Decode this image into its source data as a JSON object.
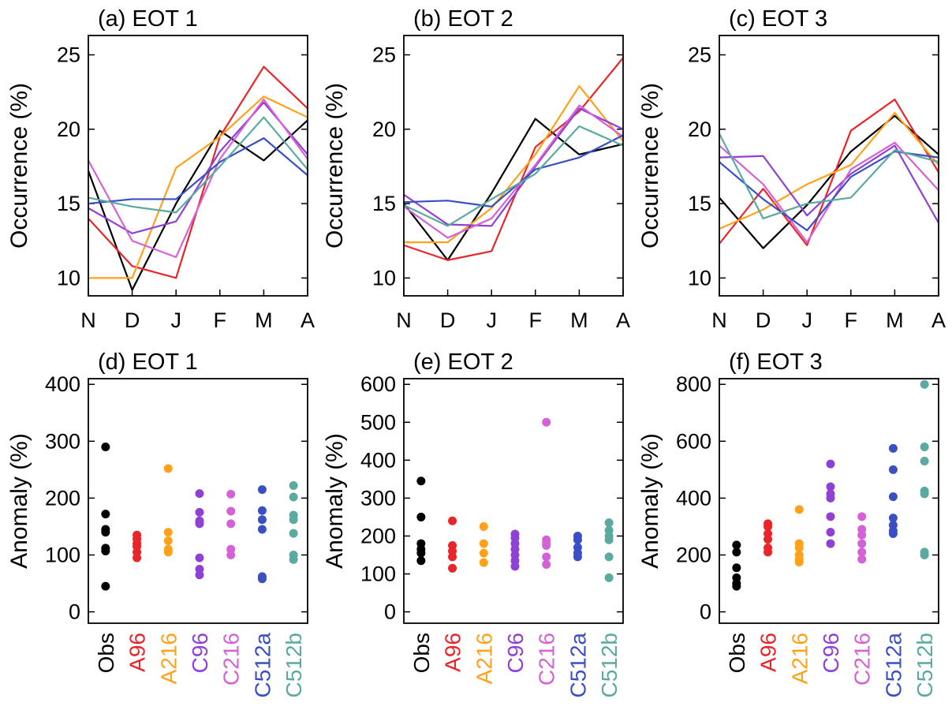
{
  "chart_data": [
    {
      "type": "line",
      "title": "(a) EOT 1",
      "y_label": "Occurrence (%)",
      "categories": [
        "N",
        "D",
        "J",
        "F",
        "M",
        "A"
      ],
      "ylim": [
        8.8,
        26.3
      ],
      "yticks": [
        10,
        15,
        20,
        25
      ],
      "series": [
        {
          "name": "Obs",
          "color": "#000000",
          "values": [
            17.2,
            9.2,
            15.0,
            19.9,
            17.9,
            20.6
          ]
        },
        {
          "name": "A96",
          "color": "#e8262a",
          "values": [
            14.0,
            10.8,
            10.0,
            19.5,
            24.2,
            21.4
          ]
        },
        {
          "name": "A216",
          "color": "#ffa21a",
          "values": [
            10.0,
            10.0,
            17.4,
            19.5,
            22.2,
            20.8
          ]
        },
        {
          "name": "C96",
          "color": "#9140d4",
          "values": [
            14.7,
            13.0,
            13.8,
            18.5,
            21.8,
            18.3
          ]
        },
        {
          "name": "C216",
          "color": "#d462d6",
          "values": [
            17.9,
            12.5,
            11.4,
            18.0,
            22.0,
            18.0
          ]
        },
        {
          "name": "C512a",
          "color": "#3a4fc4",
          "values": [
            15.0,
            15.3,
            15.3,
            17.8,
            19.4,
            16.9
          ]
        },
        {
          "name": "C512b",
          "color": "#5aaaa2",
          "values": [
            15.4,
            14.8,
            14.4,
            17.5,
            20.8,
            17.3
          ]
        }
      ]
    },
    {
      "type": "line",
      "title": "(b) EOT 2",
      "y_label": "Occurrence (%)",
      "categories": [
        "N",
        "D",
        "J",
        "F",
        "M",
        "A"
      ],
      "ylim": [
        8.8,
        26.3
      ],
      "yticks": [
        10,
        15,
        20,
        25
      ],
      "series": [
        {
          "name": "Obs",
          "color": "#000000",
          "values": [
            15.0,
            11.2,
            15.7,
            20.7,
            18.3,
            19.0
          ]
        },
        {
          "name": "A96",
          "color": "#e8262a",
          "values": [
            12.2,
            11.2,
            11.8,
            18.8,
            21.2,
            24.8
          ]
        },
        {
          "name": "A216",
          "color": "#ffa21a",
          "values": [
            12.4,
            12.4,
            14.7,
            18.3,
            22.9,
            19.2
          ]
        },
        {
          "name": "C96",
          "color": "#9140d4",
          "values": [
            15.6,
            13.6,
            13.5,
            17.5,
            21.4,
            20.0
          ]
        },
        {
          "name": "C216",
          "color": "#d462d6",
          "values": [
            14.8,
            12.7,
            14.0,
            17.6,
            21.6,
            19.5
          ]
        },
        {
          "name": "C512a",
          "color": "#3a4fc4",
          "values": [
            15.1,
            15.2,
            14.8,
            17.3,
            18.1,
            19.6
          ]
        },
        {
          "name": "C512b",
          "color": "#5aaaa2",
          "values": [
            14.9,
            13.5,
            15.3,
            17.0,
            20.2,
            18.9
          ]
        }
      ]
    },
    {
      "type": "line",
      "title": "(c) EOT 3",
      "y_label": "Occurrence (%)",
      "categories": [
        "N",
        "D",
        "J",
        "F",
        "M",
        "A"
      ],
      "ylim": [
        8.8,
        26.3
      ],
      "yticks": [
        10,
        15,
        20,
        25
      ],
      "series": [
        {
          "name": "Obs",
          "color": "#000000",
          "values": [
            15.4,
            12.0,
            14.9,
            18.5,
            20.9,
            18.3
          ]
        },
        {
          "name": "A96",
          "color": "#e8262a",
          "values": [
            12.3,
            16.0,
            12.2,
            19.9,
            22.0,
            17.1
          ]
        },
        {
          "name": "A216",
          "color": "#ffa21a",
          "values": [
            13.3,
            14.6,
            16.3,
            17.6,
            21.1,
            17.6
          ]
        },
        {
          "name": "C96",
          "color": "#9140d4",
          "values": [
            18.1,
            18.2,
            14.2,
            17.0,
            18.9,
            13.7
          ]
        },
        {
          "name": "C216",
          "color": "#d462d6",
          "values": [
            18.9,
            16.3,
            12.4,
            17.3,
            19.1,
            15.9
          ]
        },
        {
          "name": "C512a",
          "color": "#3a4fc4",
          "values": [
            17.8,
            15.3,
            13.2,
            16.8,
            18.5,
            18.1
          ]
        },
        {
          "name": "C512b",
          "color": "#5aaaa2",
          "values": [
            19.7,
            14.0,
            15.0,
            15.4,
            18.6,
            17.8
          ]
        }
      ]
    },
    {
      "type": "strip",
      "title": "(d) EOT 1",
      "y_label": "Anomaly (%)",
      "ylim": [
        -20,
        410
      ],
      "yticks": [
        0,
        100,
        200,
        300,
        400
      ],
      "series": [
        {
          "name": "Obs",
          "color": "#000000",
          "values": [
            290,
            172,
            145,
            140,
            112,
            107,
            45
          ]
        },
        {
          "name": "A96",
          "color": "#e8262a",
          "values": [
            135,
            128,
            120,
            115,
            105,
            95
          ]
        },
        {
          "name": "A216",
          "color": "#ffa21a",
          "values": [
            252,
            140,
            125,
            110,
            105
          ]
        },
        {
          "name": "C96",
          "color": "#9140d4",
          "values": [
            208,
            175,
            160,
            155,
            95,
            75,
            65
          ]
        },
        {
          "name": "C216",
          "color": "#d462d6",
          "values": [
            207,
            177,
            155,
            110,
            100
          ]
        },
        {
          "name": "C512a",
          "color": "#3a4fc4",
          "values": [
            215,
            178,
            162,
            145,
            62,
            58
          ]
        },
        {
          "name": "C512b",
          "color": "#5aaaa2",
          "values": [
            222,
            202,
            170,
            162,
            138,
            100,
            92
          ]
        }
      ]
    },
    {
      "type": "strip",
      "title": "(e) EOT 2",
      "y_label": "Anomaly (%)",
      "ylim": [
        -30,
        615
      ],
      "yticks": [
        0,
        100,
        200,
        300,
        400,
        500,
        600
      ],
      "series": [
        {
          "name": "Obs",
          "color": "#000000",
          "values": [
            345,
            250,
            180,
            165,
            155,
            135
          ]
        },
        {
          "name": "A96",
          "color": "#e8262a",
          "values": [
            240,
            175,
            160,
            145,
            115
          ]
        },
        {
          "name": "A216",
          "color": "#ffa21a",
          "values": [
            225,
            180,
            155,
            130
          ]
        },
        {
          "name": "C96",
          "color": "#9140d4",
          "values": [
            205,
            195,
            180,
            165,
            150,
            135,
            120
          ]
        },
        {
          "name": "C216",
          "color": "#d462d6",
          "values": [
            500,
            190,
            180,
            175,
            145,
            125
          ]
        },
        {
          "name": "C512a",
          "color": "#3a4fc4",
          "values": [
            200,
            190,
            170,
            155,
            145
          ]
        },
        {
          "name": "C512b",
          "color": "#5aaaa2",
          "values": [
            235,
            215,
            200,
            190,
            145,
            90
          ]
        }
      ]
    },
    {
      "type": "strip",
      "title": "(f) EOT 3",
      "y_label": "Anomaly (%)",
      "ylim": [
        -40,
        820
      ],
      "yticks": [
        0,
        200,
        400,
        600,
        800
      ],
      "series": [
        {
          "name": "Obs",
          "color": "#000000",
          "values": [
            235,
            210,
            155,
            120,
            100,
            90
          ]
        },
        {
          "name": "A96",
          "color": "#e8262a",
          "values": [
            310,
            300,
            275,
            255,
            225,
            210
          ]
        },
        {
          "name": "A216",
          "color": "#ffa21a",
          "values": [
            360,
            240,
            225,
            200,
            185,
            175
          ]
        },
        {
          "name": "C96",
          "color": "#9140d4",
          "values": [
            520,
            440,
            415,
            400,
            335,
            280,
            240
          ]
        },
        {
          "name": "C216",
          "color": "#d462d6",
          "values": [
            335,
            290,
            270,
            240,
            210,
            185
          ]
        },
        {
          "name": "C512a",
          "color": "#3a4fc4",
          "values": [
            575,
            500,
            405,
            330,
            305,
            285,
            275
          ]
        },
        {
          "name": "C512b",
          "color": "#5aaaa2",
          "values": [
            800,
            580,
            530,
            425,
            415,
            210,
            200
          ]
        }
      ]
    }
  ]
}
